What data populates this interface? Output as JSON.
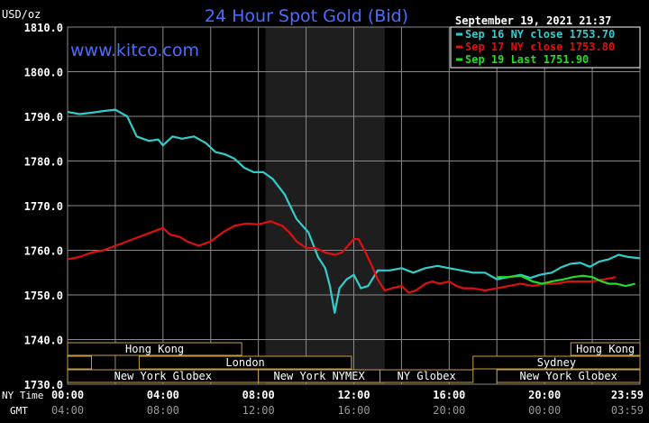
{
  "header": {
    "title": "24 Hour Spot Gold (Bid)",
    "y_unit": "USD/oz",
    "timestamp": "September 19, 2021 21:37",
    "watermark": "www.kitco.com"
  },
  "colors": {
    "background": "#000000",
    "plot_bg": "#000000",
    "shade": "#1e1e1e",
    "grid": "#8a8a8a",
    "title": "#4a6cff",
    "watermark": "#4a6cff",
    "text": "#ffffff",
    "session_box": "#c8a040",
    "sep16": "#33cccc",
    "sep17": "#dd1111",
    "sep19": "#22dd22"
  },
  "legend": [
    {
      "label": "Sep 16 NY close 1753.70",
      "color": "#33cccc"
    },
    {
      "label": "Sep 17 NY close 1753.80",
      "color": "#dd1111"
    },
    {
      "label": "Sep 19 Last 1751.90",
      "color": "#22dd22"
    }
  ],
  "row_labels": {
    "ny": "NY Time",
    "gmt": "GMT"
  },
  "sessions": {
    "row1": [
      {
        "label": "Hong Kong",
        "start": 0,
        "end": 7.3
      },
      {
        "label": "Hong Kong",
        "start": 21.1,
        "end": 24
      }
    ],
    "row2": [
      {
        "label": "",
        "start": 0,
        "end": 1.0
      },
      {
        "label": "London",
        "start": 3.0,
        "end": 11.9
      },
      {
        "label": "Sydney",
        "start": 17.0,
        "end": 24
      }
    ],
    "row3": [
      {
        "label": "New York Globex",
        "start": 0,
        "end": 8.0
      },
      {
        "label": "New York NYMEX",
        "start": 8.0,
        "end": 13.1
      },
      {
        "label": "NY Globex",
        "start": 13.1,
        "end": 17.0
      },
      {
        "label": "New York Globex",
        "start": 18.0,
        "end": 24
      }
    ]
  },
  "chart_data": {
    "type": "line",
    "title": "24 Hour Spot Gold (Bid)",
    "ylabel": "USD/oz",
    "ylim": [
      1730,
      1810
    ],
    "yticks": [
      "1730.0",
      "1740.0",
      "1750.0",
      "1760.0",
      "1770.0",
      "1780.0",
      "1790.0",
      "1800.0",
      "1810.0"
    ],
    "xlim": [
      0,
      24
    ],
    "xticks_ny": [
      "00:00",
      "04:00",
      "08:00",
      "12:00",
      "16:00",
      "20:00",
      "23:59"
    ],
    "xticks_gmt": [
      "04:00",
      "08:00",
      "12:00",
      "16:00",
      "20:00",
      "00:00",
      "03:59"
    ],
    "shaded_ny_hours": [
      8.3,
      13.3
    ],
    "grid": true,
    "series": [
      {
        "name": "Sep 16 NY close 1753.70",
        "color": "#33cccc",
        "points": [
          [
            0,
            1791.0
          ],
          [
            0.5,
            1790.5
          ],
          [
            1.0,
            1790.8
          ],
          [
            1.5,
            1791.2
          ],
          [
            2.0,
            1791.5
          ],
          [
            2.5,
            1790.0
          ],
          [
            2.9,
            1785.5
          ],
          [
            3.4,
            1784.5
          ],
          [
            3.8,
            1784.8
          ],
          [
            4.0,
            1783.5
          ],
          [
            4.4,
            1785.5
          ],
          [
            4.8,
            1785.0
          ],
          [
            5.3,
            1785.5
          ],
          [
            5.8,
            1784.0
          ],
          [
            6.2,
            1782.0
          ],
          [
            6.6,
            1781.5
          ],
          [
            7.0,
            1780.5
          ],
          [
            7.4,
            1778.5
          ],
          [
            7.8,
            1777.5
          ],
          [
            8.2,
            1777.5
          ],
          [
            8.6,
            1776.0
          ],
          [
            9.1,
            1772.5
          ],
          [
            9.6,
            1767.0
          ],
          [
            10.1,
            1764.0
          ],
          [
            10.5,
            1758.5
          ],
          [
            10.8,
            1756.0
          ],
          [
            11.0,
            1752.0
          ],
          [
            11.2,
            1746.0
          ],
          [
            11.4,
            1751.5
          ],
          [
            11.7,
            1753.5
          ],
          [
            12.0,
            1754.5
          ],
          [
            12.3,
            1751.5
          ],
          [
            12.6,
            1752.0
          ],
          [
            13.0,
            1755.5
          ],
          [
            13.5,
            1755.5
          ],
          [
            14.0,
            1756.0
          ],
          [
            14.5,
            1755.0
          ],
          [
            15.0,
            1756.0
          ],
          [
            15.5,
            1756.5
          ],
          [
            16.0,
            1756.0
          ],
          [
            16.5,
            1755.5
          ],
          [
            17.0,
            1755.0
          ],
          [
            17.5,
            1755.0
          ],
          [
            18.0,
            1753.5
          ],
          [
            18.5,
            1754.0
          ],
          [
            19.0,
            1754.5
          ],
          [
            19.4,
            1753.8
          ],
          [
            19.8,
            1754.5
          ],
          [
            20.3,
            1755.0
          ],
          [
            20.7,
            1756.2
          ],
          [
            21.1,
            1757.0
          ],
          [
            21.5,
            1757.2
          ],
          [
            21.9,
            1756.3
          ],
          [
            22.3,
            1757.5
          ],
          [
            22.7,
            1758.0
          ],
          [
            23.1,
            1759.0
          ],
          [
            23.5,
            1758.5
          ],
          [
            23.99,
            1758.2
          ]
        ]
      },
      {
        "name": "Sep 17 NY close 1753.80",
        "color": "#dd1111",
        "points": [
          [
            0,
            1758.0
          ],
          [
            0.5,
            1758.5
          ],
          [
            1.0,
            1759.5
          ],
          [
            1.5,
            1760.0
          ],
          [
            2.0,
            1761.0
          ],
          [
            2.5,
            1762.0
          ],
          [
            3.0,
            1763.0
          ],
          [
            3.5,
            1764.0
          ],
          [
            4.0,
            1765.0
          ],
          [
            4.3,
            1763.5
          ],
          [
            4.7,
            1763.0
          ],
          [
            5.0,
            1762.0
          ],
          [
            5.5,
            1761.0
          ],
          [
            6.0,
            1762.0
          ],
          [
            6.5,
            1764.0
          ],
          [
            7.0,
            1765.5
          ],
          [
            7.5,
            1766.0
          ],
          [
            8.0,
            1765.8
          ],
          [
            8.5,
            1766.5
          ],
          [
            9.0,
            1765.5
          ],
          [
            9.3,
            1764.0
          ],
          [
            9.6,
            1762.0
          ],
          [
            10.0,
            1760.5
          ],
          [
            10.4,
            1760.5
          ],
          [
            10.8,
            1759.5
          ],
          [
            11.2,
            1759.0
          ],
          [
            11.5,
            1759.5
          ],
          [
            12.0,
            1762.5
          ],
          [
            12.2,
            1762.5
          ],
          [
            12.5,
            1759.5
          ],
          [
            12.8,
            1756.0
          ],
          [
            13.0,
            1753.5
          ],
          [
            13.3,
            1751.0
          ],
          [
            13.6,
            1751.5
          ],
          [
            14.0,
            1752.0
          ],
          [
            14.3,
            1750.5
          ],
          [
            14.6,
            1751.0
          ],
          [
            15.0,
            1752.5
          ],
          [
            15.3,
            1753.0
          ],
          [
            15.6,
            1752.5
          ],
          [
            16.0,
            1753.0
          ],
          [
            16.3,
            1752.0
          ],
          [
            16.6,
            1751.5
          ],
          [
            17.0,
            1751.5
          ],
          [
            17.5,
            1751.0
          ],
          [
            18.0,
            1751.5
          ],
          [
            18.5,
            1752.0
          ],
          [
            19.0,
            1752.5
          ],
          [
            19.5,
            1752.0
          ],
          [
            20.0,
            1752.5
          ],
          [
            20.5,
            1752.5
          ],
          [
            21.0,
            1753.0
          ],
          [
            21.5,
            1753.0
          ],
          [
            22.0,
            1753.0
          ],
          [
            22.5,
            1753.5
          ],
          [
            23.0,
            1754.0
          ]
        ]
      },
      {
        "name": "Sep 19 Last 1751.90",
        "color": "#22dd22",
        "points": [
          [
            18.0,
            1754.0
          ],
          [
            18.5,
            1754.0
          ],
          [
            19.0,
            1754.3
          ],
          [
            19.5,
            1753.0
          ],
          [
            19.9,
            1752.5
          ],
          [
            20.3,
            1753.0
          ],
          [
            20.8,
            1753.5
          ],
          [
            21.2,
            1754.0
          ],
          [
            21.6,
            1754.3
          ],
          [
            22.0,
            1754.0
          ],
          [
            22.4,
            1753.0
          ],
          [
            22.7,
            1752.5
          ],
          [
            23.0,
            1752.5
          ],
          [
            23.4,
            1752.0
          ],
          [
            23.8,
            1752.5
          ]
        ]
      }
    ]
  }
}
